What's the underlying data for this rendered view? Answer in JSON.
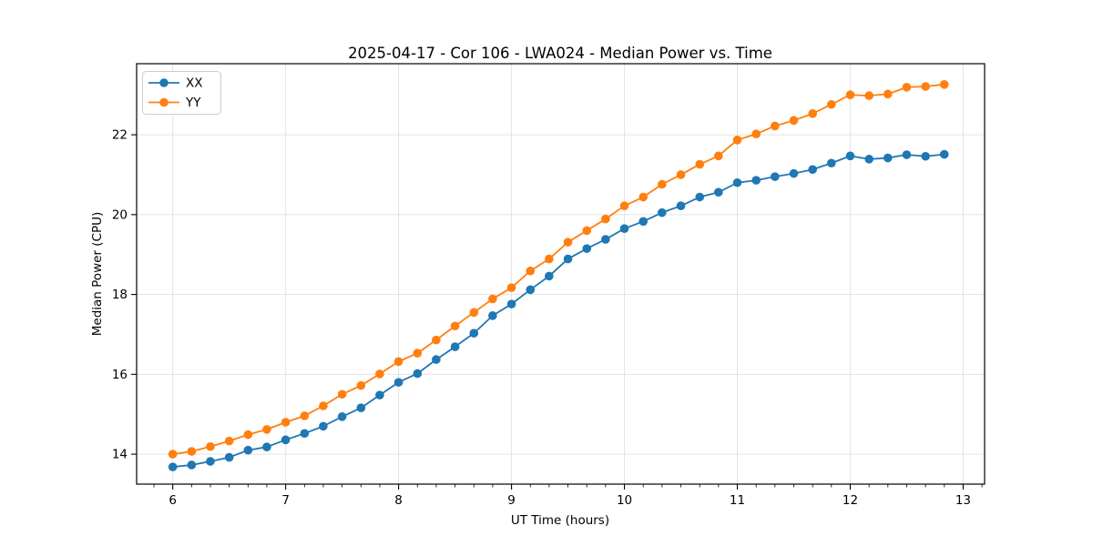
{
  "title": "2025-04-17 - Cor 106 - LWA024 - Median Power vs. Time",
  "chart_data": {
    "type": "line",
    "title": "2025-04-17 - Cor 106 - LWA024 - Median Power vs. Time",
    "xlabel": "UT Time (hours)",
    "ylabel": "Median Power (CPU)",
    "xlim": [
      5.68,
      13.19
    ],
    "ylim": [
      13.25,
      23.78
    ],
    "x_ticks": [
      6,
      7,
      8,
      9,
      10,
      11,
      12,
      13
    ],
    "y_ticks": [
      14,
      16,
      18,
      20,
      22
    ],
    "x_minor_tick_step": 0.1667,
    "grid": true,
    "grid_color": "#e3e3e3",
    "legend_position": "upper left",
    "x": [
      6.0,
      6.167,
      6.333,
      6.5,
      6.667,
      6.833,
      7.0,
      7.167,
      7.333,
      7.5,
      7.667,
      7.833,
      8.0,
      8.167,
      8.333,
      8.5,
      8.667,
      8.833,
      9.0,
      9.167,
      9.333,
      9.5,
      9.667,
      9.833,
      10.0,
      10.167,
      10.333,
      10.5,
      10.667,
      10.833,
      11.0,
      11.167,
      11.333,
      11.5,
      11.667,
      11.833,
      12.0,
      12.167,
      12.333,
      12.5,
      12.667,
      12.833
    ],
    "series": [
      {
        "name": "XX",
        "color": "#1f77b4",
        "values": [
          13.68,
          13.73,
          13.82,
          13.92,
          14.1,
          14.18,
          14.36,
          14.52,
          14.7,
          14.94,
          15.16,
          15.48,
          15.8,
          16.02,
          16.37,
          16.69,
          17.03,
          17.47,
          17.76,
          18.12,
          18.46,
          18.89,
          19.15,
          19.38,
          19.65,
          19.83,
          20.05,
          20.22,
          20.44,
          20.56,
          20.8,
          20.86,
          20.95,
          21.03,
          21.13,
          21.29,
          21.47,
          21.39,
          21.42,
          21.5,
          21.46,
          21.51
        ]
      },
      {
        "name": "YY",
        "color": "#ff7f0e",
        "values": [
          14.0,
          14.07,
          14.19,
          14.33,
          14.49,
          14.62,
          14.8,
          14.96,
          15.21,
          15.5,
          15.72,
          16.01,
          16.32,
          16.53,
          16.86,
          17.21,
          17.55,
          17.89,
          18.17,
          18.59,
          18.89,
          19.31,
          19.6,
          19.89,
          20.22,
          20.44,
          20.76,
          21.0,
          21.26,
          21.47,
          21.87,
          22.02,
          22.22,
          22.36,
          22.53,
          22.76,
          23.0,
          22.98,
          23.02,
          23.19,
          23.21,
          23.26
        ]
      }
    ]
  }
}
